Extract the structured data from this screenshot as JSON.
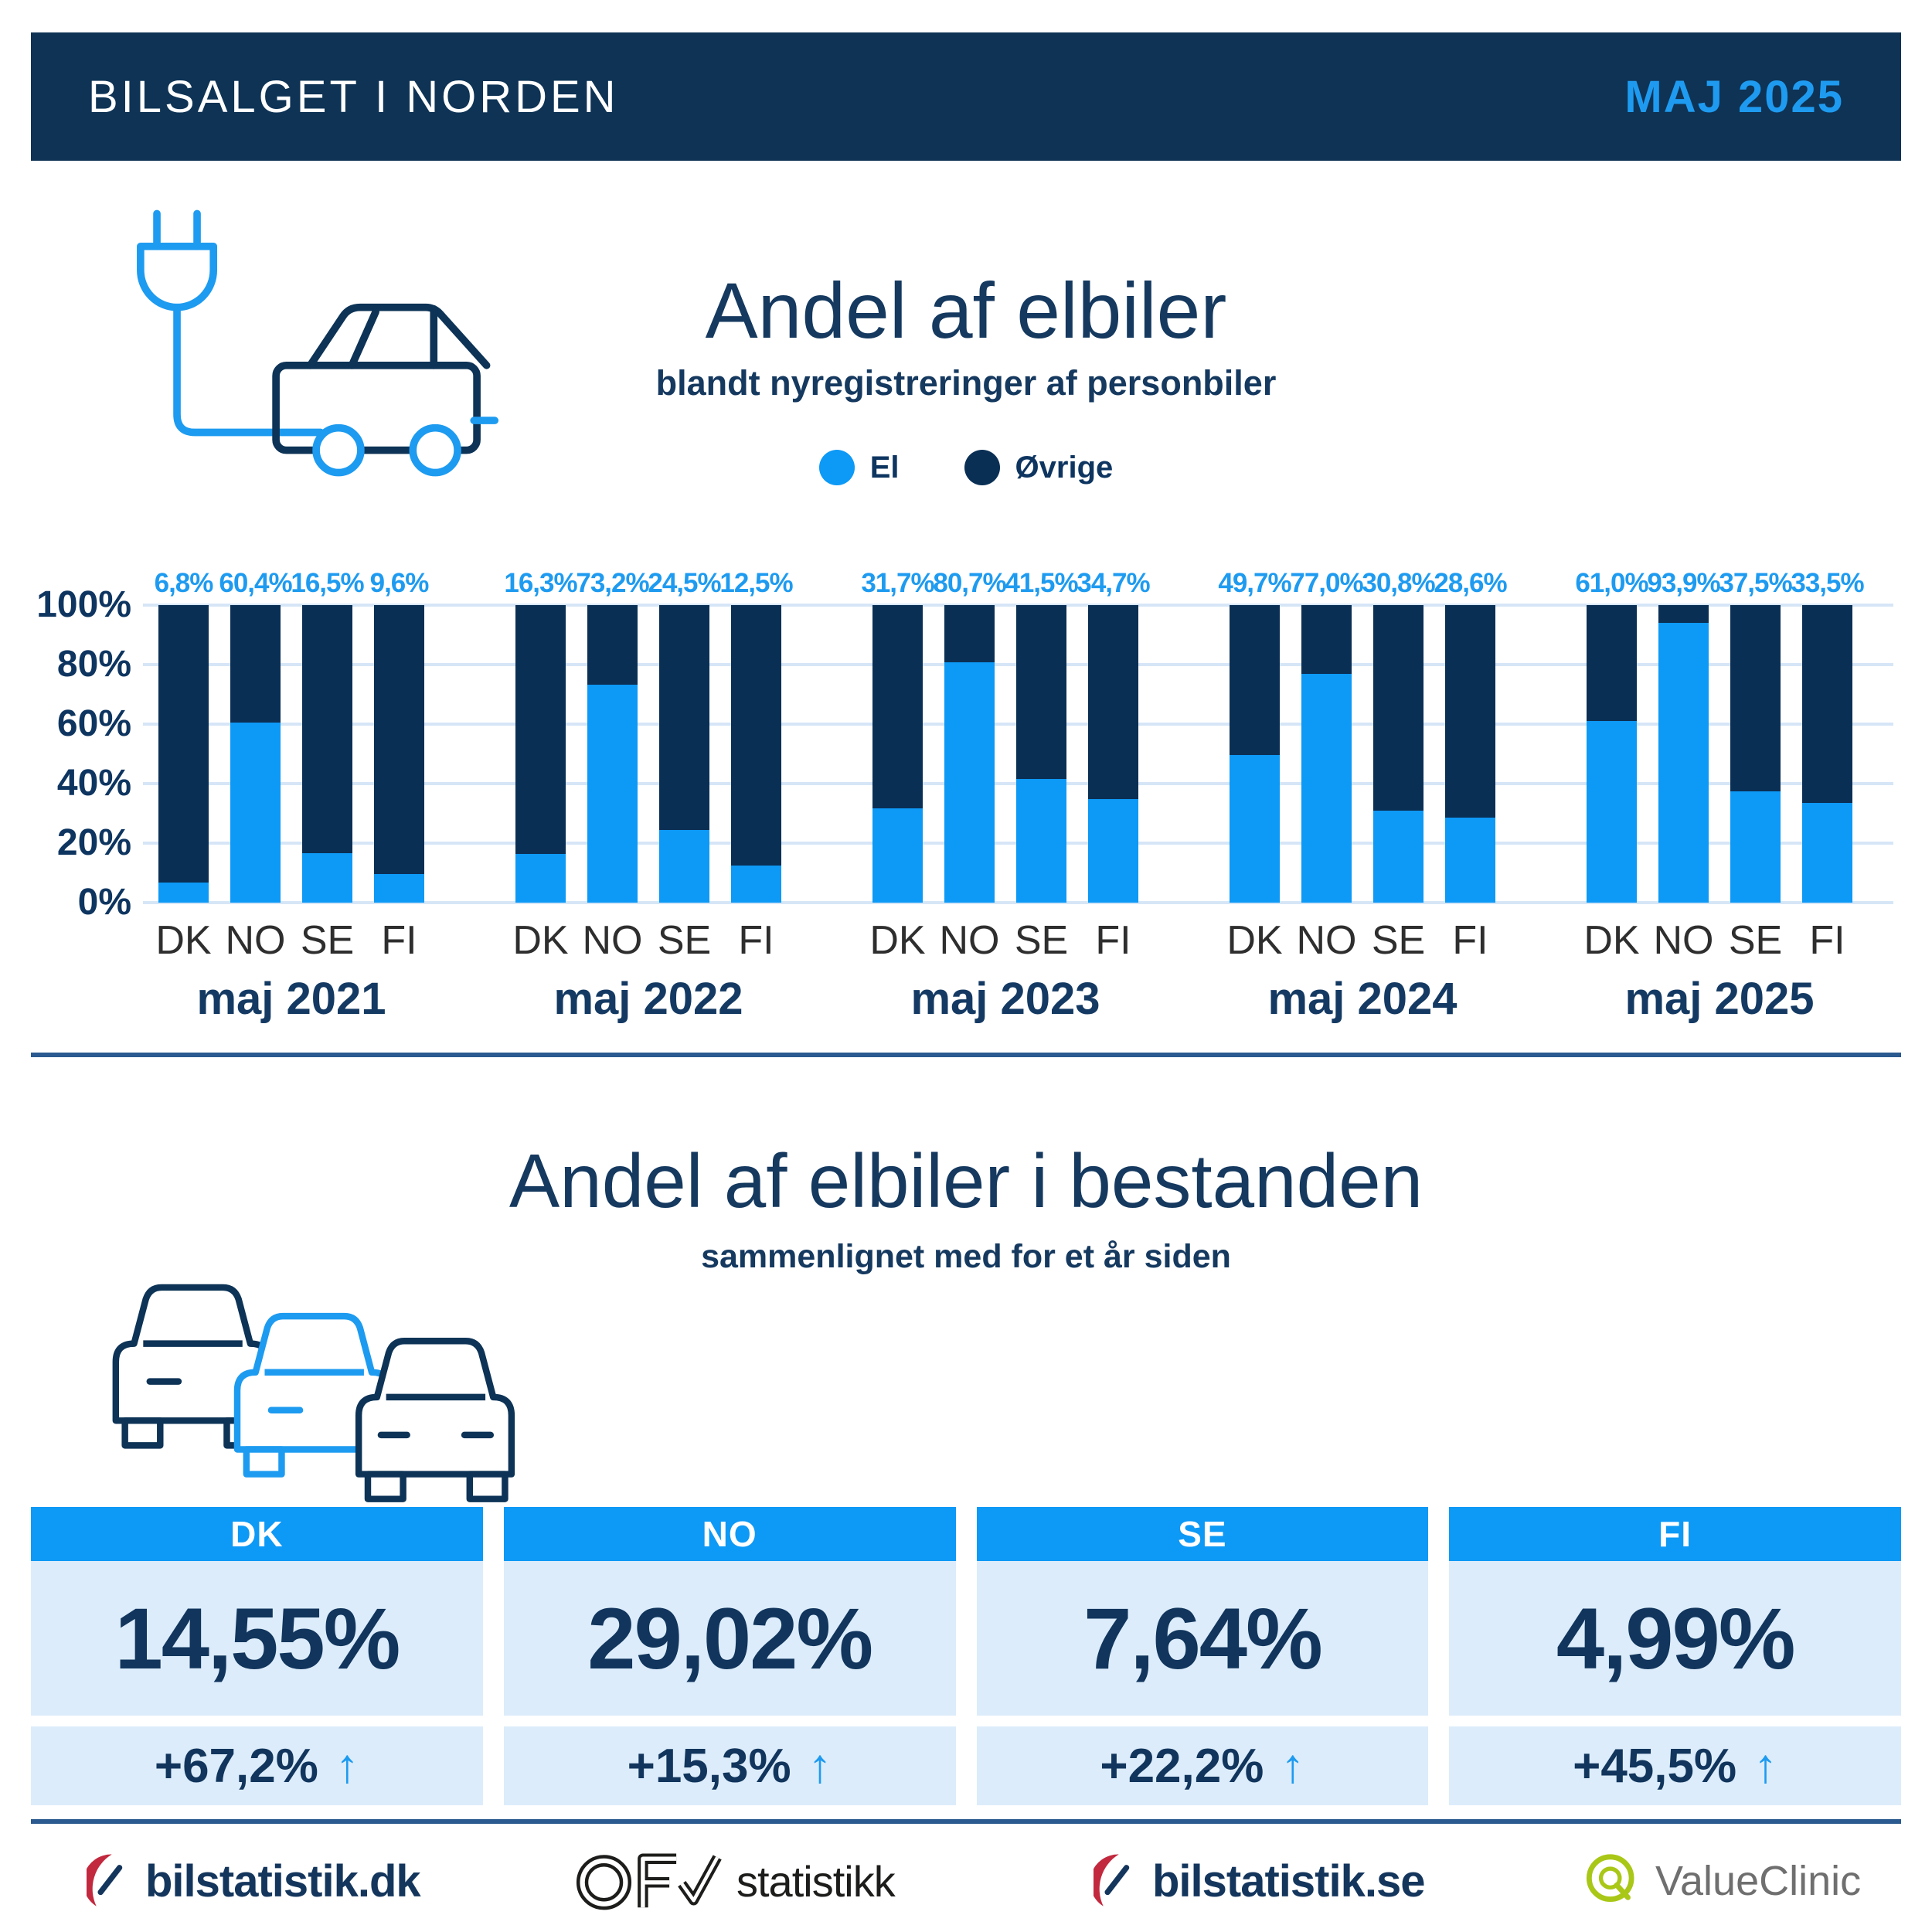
{
  "header": {
    "title": "BILSALGET I NORDEN",
    "period": "MAJ 2025"
  },
  "chart_data": {
    "type": "bar",
    "stacked": true,
    "title": "Andel af elbiler",
    "subtitle": "blandt nyregistreringer af personbiler",
    "legend_position": "top",
    "ylim": [
      0,
      100
    ],
    "y_ticks": [
      "0%",
      "20%",
      "40%",
      "60%",
      "80%",
      "100%"
    ],
    "grid": true,
    "countries": [
      "DK",
      "NO",
      "SE",
      "FI"
    ],
    "series": [
      {
        "name": "El",
        "color": "#0D99F6"
      },
      {
        "name": "Øvrige",
        "color": "#0A2F55"
      }
    ],
    "groups": [
      {
        "category": "maj 2021",
        "values": [
          6.8,
          60.4,
          16.5,
          9.6
        ],
        "labels": [
          "6,8%",
          "60,4%",
          "16,5%",
          "9,6%"
        ]
      },
      {
        "category": "maj 2022",
        "values": [
          16.3,
          73.2,
          24.5,
          12.5
        ],
        "labels": [
          "16,3%",
          "73,2%",
          "24,5%",
          "12,5%"
        ]
      },
      {
        "category": "maj 2023",
        "values": [
          31.7,
          80.7,
          41.5,
          34.7
        ],
        "labels": [
          "31,7%",
          "80,7%",
          "41,5%",
          "34,7%"
        ]
      },
      {
        "category": "maj 2024",
        "values": [
          49.7,
          77.0,
          30.8,
          28.6
        ],
        "labels": [
          "49,7%",
          "77,0%",
          "30,8%",
          "28,6%"
        ]
      },
      {
        "category": "maj 2025",
        "values": [
          61.0,
          93.9,
          37.5,
          33.5
        ],
        "labels": [
          "61,0%",
          "93,9%",
          "37,5%",
          "33,5%"
        ]
      }
    ]
  },
  "section_fleet": {
    "title": "Andel af elbiler i bestanden",
    "subtitle": "sammenlignet med for et år siden",
    "cards": [
      {
        "country": "DK",
        "share": "14,55%",
        "change": "+67,2%",
        "arrow": "↑"
      },
      {
        "country": "NO",
        "share": "29,02%",
        "change": "+15,3%",
        "arrow": "↑"
      },
      {
        "country": "SE",
        "share": "7,64%",
        "change": "+22,2%",
        "arrow": "↑"
      },
      {
        "country": "FI",
        "share": "4,99%",
        "change": "+45,5%",
        "arrow": "↑"
      }
    ]
  },
  "footer": {
    "logos": [
      {
        "id": "bilstatistik-dk",
        "label": "bilstatistik.dk"
      },
      {
        "id": "ofv-statistikk",
        "label": "statistikk"
      },
      {
        "id": "bilstatistik-se",
        "label": "bilstatistik.se"
      },
      {
        "id": "valueclinic",
        "label": "ValueClinic"
      }
    ]
  },
  "colors": {
    "header_bg": "#0E3355",
    "navy": "#0A2F55",
    "accent_blue": "#0D99F6",
    "label_blue": "#1E9BF0",
    "card_bg": "#DCECFB",
    "gridline": "#D6E6F7",
    "title_navy": "#15395F",
    "divider": "#2A5A8F",
    "logo_red": "#C2293E",
    "logo_green": "#A9C717",
    "logo_gray": "#6F6F6F"
  }
}
